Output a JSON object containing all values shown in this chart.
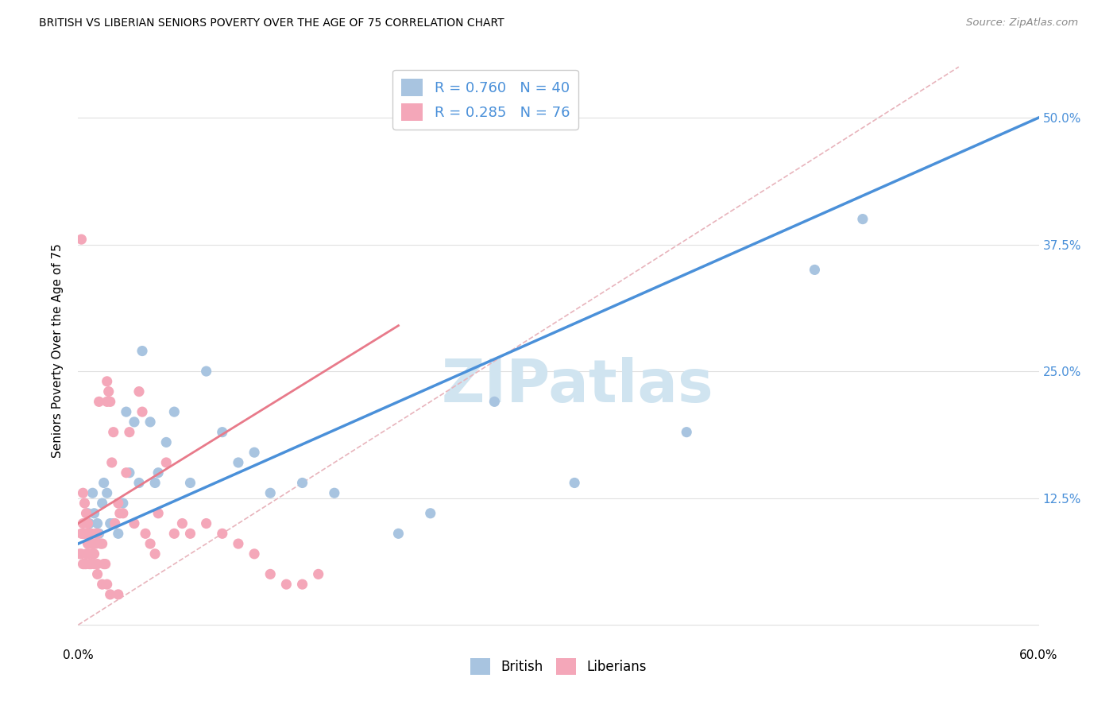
{
  "title": "BRITISH VS LIBERIAN SENIORS POVERTY OVER THE AGE OF 75 CORRELATION CHART",
  "source": "Source: ZipAtlas.com",
  "ylabel": "Seniors Poverty Over the Age of 75",
  "xlim": [
    0.0,
    0.6
  ],
  "ylim": [
    -0.02,
    0.56
  ],
  "xticks": [
    0.0,
    0.1,
    0.2,
    0.3,
    0.4,
    0.5,
    0.6
  ],
  "xticklabels": [
    "0.0%",
    "",
    "",
    "",
    "",
    "",
    "60.0%"
  ],
  "yticks": [
    0.0,
    0.125,
    0.25,
    0.375,
    0.5
  ],
  "yticklabels": [
    "",
    "12.5%",
    "25.0%",
    "37.5%",
    "50.0%"
  ],
  "british_R": 0.76,
  "british_N": 40,
  "liberian_R": 0.285,
  "liberian_N": 76,
  "british_color": "#a8c4e0",
  "liberian_color": "#f4a7b9",
  "british_line_color": "#4a90d9",
  "liberian_line_color": "#e87a8a",
  "diagonal_color": "#e8b4bc",
  "legend_text_color": "#4a90d9",
  "watermark_color": "#d0e4f0",
  "british_line_x0": 0.0,
  "british_line_y0": 0.08,
  "british_line_x1": 0.6,
  "british_line_y1": 0.5,
  "liberian_line_x0": 0.0,
  "liberian_line_y0": 0.1,
  "liberian_line_x1": 0.2,
  "liberian_line_y1": 0.295,
  "diag_line_x0": 0.0,
  "diag_line_y0": 0.0,
  "diag_line_x1": 0.55,
  "diag_line_y1": 0.55,
  "british_x": [
    0.005,
    0.006,
    0.007,
    0.008,
    0.009,
    0.01,
    0.012,
    0.013,
    0.015,
    0.016,
    0.018,
    0.02,
    0.022,
    0.025,
    0.028,
    0.03,
    0.032,
    0.035,
    0.038,
    0.04,
    0.045,
    0.048,
    0.05,
    0.055,
    0.06,
    0.07,
    0.08,
    0.09,
    0.1,
    0.11,
    0.12,
    0.14,
    0.16,
    0.2,
    0.22,
    0.26,
    0.31,
    0.38,
    0.46,
    0.49
  ],
  "british_y": [
    0.09,
    0.11,
    0.1,
    0.09,
    0.13,
    0.11,
    0.1,
    0.09,
    0.12,
    0.14,
    0.13,
    0.1,
    0.1,
    0.09,
    0.12,
    0.21,
    0.15,
    0.2,
    0.14,
    0.27,
    0.2,
    0.14,
    0.15,
    0.18,
    0.21,
    0.14,
    0.25,
    0.19,
    0.16,
    0.17,
    0.13,
    0.14,
    0.13,
    0.09,
    0.11,
    0.22,
    0.14,
    0.19,
    0.35,
    0.4
  ],
  "liberian_x": [
    0.001,
    0.002,
    0.002,
    0.002,
    0.003,
    0.003,
    0.003,
    0.004,
    0.004,
    0.005,
    0.005,
    0.005,
    0.006,
    0.006,
    0.007,
    0.007,
    0.007,
    0.008,
    0.008,
    0.009,
    0.009,
    0.01,
    0.01,
    0.011,
    0.011,
    0.012,
    0.012,
    0.013,
    0.014,
    0.015,
    0.016,
    0.017,
    0.018,
    0.018,
    0.019,
    0.02,
    0.021,
    0.022,
    0.023,
    0.025,
    0.026,
    0.028,
    0.03,
    0.032,
    0.035,
    0.038,
    0.04,
    0.042,
    0.045,
    0.048,
    0.05,
    0.055,
    0.06,
    0.065,
    0.07,
    0.08,
    0.09,
    0.1,
    0.11,
    0.12,
    0.13,
    0.14,
    0.15,
    0.003,
    0.004,
    0.005,
    0.006,
    0.007,
    0.008,
    0.009,
    0.01,
    0.012,
    0.015,
    0.018,
    0.02,
    0.025
  ],
  "liberian_y": [
    0.07,
    0.07,
    0.09,
    0.38,
    0.06,
    0.09,
    0.1,
    0.06,
    0.09,
    0.06,
    0.07,
    0.09,
    0.07,
    0.08,
    0.06,
    0.08,
    0.09,
    0.06,
    0.09,
    0.07,
    0.08,
    0.07,
    0.08,
    0.08,
    0.09,
    0.06,
    0.09,
    0.22,
    0.08,
    0.08,
    0.06,
    0.06,
    0.22,
    0.24,
    0.23,
    0.22,
    0.16,
    0.19,
    0.1,
    0.12,
    0.11,
    0.11,
    0.15,
    0.19,
    0.1,
    0.23,
    0.21,
    0.09,
    0.08,
    0.07,
    0.11,
    0.16,
    0.09,
    0.1,
    0.09,
    0.1,
    0.09,
    0.08,
    0.07,
    0.05,
    0.04,
    0.04,
    0.05,
    0.13,
    0.12,
    0.11,
    0.1,
    0.09,
    0.08,
    0.07,
    0.06,
    0.05,
    0.04,
    0.04,
    0.03,
    0.03
  ]
}
